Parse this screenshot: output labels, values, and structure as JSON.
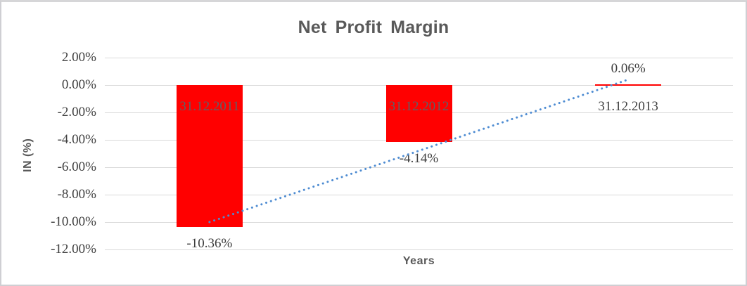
{
  "chart_data": {
    "type": "bar",
    "title": "Net Profit Margin",
    "xlabel": "Years",
    "ylabel": "IN (%)",
    "categories": [
      "31.12.2011",
      "31.12.2012",
      "31.12.2013"
    ],
    "values": [
      -10.36,
      -4.14,
      0.06
    ],
    "value_labels": [
      "-10.36%",
      "-4.14%",
      "0.06%"
    ],
    "ylim": [
      -12,
      2
    ],
    "yticks": [
      2,
      0,
      -2,
      -4,
      -6,
      -8,
      -10,
      -12
    ],
    "ytick_labels": [
      "2.00%",
      "0.00%",
      "-2.00%",
      "-4.00%",
      "-6.00%",
      "-8.00%",
      "-10.00%",
      "-12.00%"
    ],
    "grid": true,
    "legend": "none",
    "bar_color": "#ff0000",
    "gridline_color": "#d9d9d9",
    "title_color": "#595959",
    "axis_title_color": "#595959",
    "tick_label_color": "#404040",
    "value_label_color": "#3d3d3d",
    "category_label_colors": [
      "#5a6268",
      "#5a6268",
      "#404040"
    ],
    "trendline": {
      "style": "dotted",
      "color": "#4e8cd2",
      "start_value": -10.0,
      "end_value": 0.4
    }
  }
}
